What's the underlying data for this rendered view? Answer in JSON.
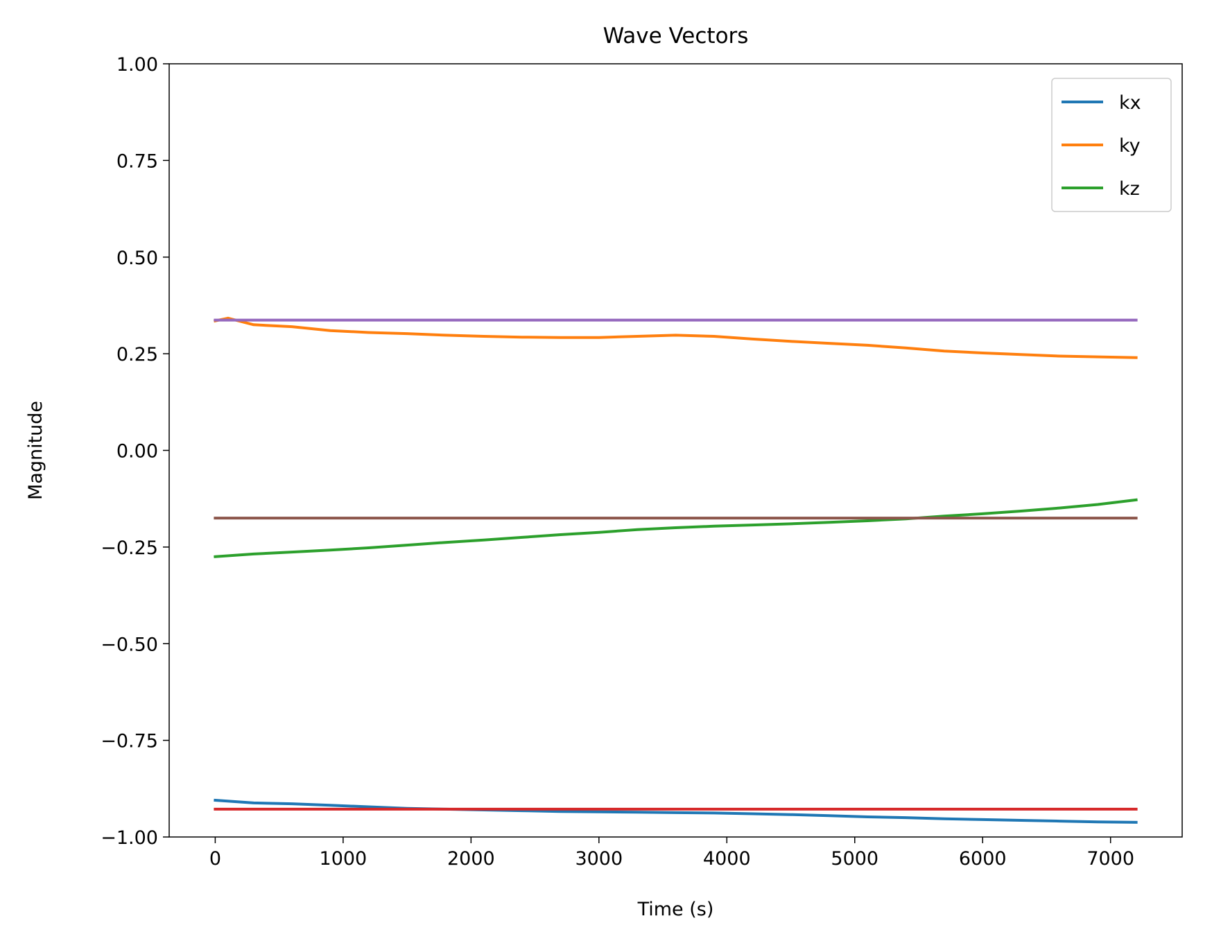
{
  "chart_data": {
    "type": "line",
    "title": "Wave Vectors",
    "xlabel": "Time (s)",
    "ylabel": "Magnitude",
    "xlim": [
      -360,
      7560
    ],
    "ylim": [
      -1.0,
      1.0
    ],
    "xticks": [
      0,
      1000,
      2000,
      3000,
      4000,
      5000,
      6000,
      7000
    ],
    "xtick_labels": [
      "0",
      "1000",
      "2000",
      "3000",
      "4000",
      "5000",
      "6000",
      "7000"
    ],
    "yticks": [
      1.0,
      0.75,
      0.5,
      0.25,
      0.0,
      -0.25,
      -0.5,
      -0.75,
      -1.0
    ],
    "ytick_labels": [
      "1.00",
      "0.75",
      "0.50",
      "0.25",
      "0.00",
      "−0.25",
      "−0.50",
      "−0.75",
      "−1.00"
    ],
    "grid": false,
    "legend": "top-right",
    "series": [
      {
        "name": "kx",
        "color": "#1f77b4",
        "x": [
          0,
          300,
          600,
          900,
          1200,
          1500,
          1800,
          2100,
          2400,
          2700,
          3000,
          3300,
          3600,
          3900,
          4200,
          4500,
          4800,
          5100,
          5400,
          5700,
          6000,
          6300,
          6600,
          6900,
          7200
        ],
        "y": [
          -0.905,
          -0.912,
          -0.914,
          -0.918,
          -0.922,
          -0.926,
          -0.928,
          -0.93,
          -0.932,
          -0.934,
          -0.935,
          -0.936,
          -0.937,
          -0.938,
          -0.94,
          -0.942,
          -0.945,
          -0.948,
          -0.95,
          -0.953,
          -0.955,
          -0.957,
          -0.959,
          -0.961,
          -0.962
        ]
      },
      {
        "name": "ky",
        "color": "#ff7f0e",
        "x": [
          0,
          100,
          300,
          600,
          900,
          1200,
          1500,
          1800,
          2100,
          2400,
          2700,
          3000,
          3300,
          3600,
          3900,
          4200,
          4500,
          4800,
          5100,
          5400,
          5700,
          6000,
          6300,
          6600,
          6900,
          7200
        ],
        "y": [
          0.335,
          0.342,
          0.325,
          0.32,
          0.31,
          0.305,
          0.302,
          0.298,
          0.295,
          0.293,
          0.292,
          0.292,
          0.295,
          0.298,
          0.295,
          0.288,
          0.282,
          0.277,
          0.272,
          0.265,
          0.257,
          0.252,
          0.248,
          0.244,
          0.242,
          0.24
        ]
      },
      {
        "name": "kz",
        "color": "#2ca02c",
        "x": [
          0,
          300,
          600,
          900,
          1200,
          1500,
          1800,
          2100,
          2400,
          2700,
          3000,
          3300,
          3600,
          3900,
          4200,
          4500,
          4800,
          5100,
          5400,
          5700,
          6000,
          6300,
          6600,
          6900,
          7200
        ],
        "y": [
          -0.275,
          -0.268,
          -0.263,
          -0.258,
          -0.252,
          -0.245,
          -0.238,
          -0.232,
          -0.225,
          -0.218,
          -0.212,
          -0.205,
          -0.2,
          -0.196,
          -0.193,
          -0.19,
          -0.186,
          -0.182,
          -0.177,
          -0.17,
          -0.164,
          -0.157,
          -0.149,
          -0.14,
          -0.128
        ]
      },
      {
        "color": "#d62728",
        "x": [
          0,
          7200
        ],
        "y": [
          -0.928,
          -0.928
        ]
      },
      {
        "color": "#9467bd",
        "x": [
          0,
          7200
        ],
        "y": [
          0.337,
          0.337
        ]
      },
      {
        "color": "#8c564b",
        "x": [
          0,
          7200
        ],
        "y": [
          -0.175,
          -0.175
        ]
      }
    ]
  }
}
